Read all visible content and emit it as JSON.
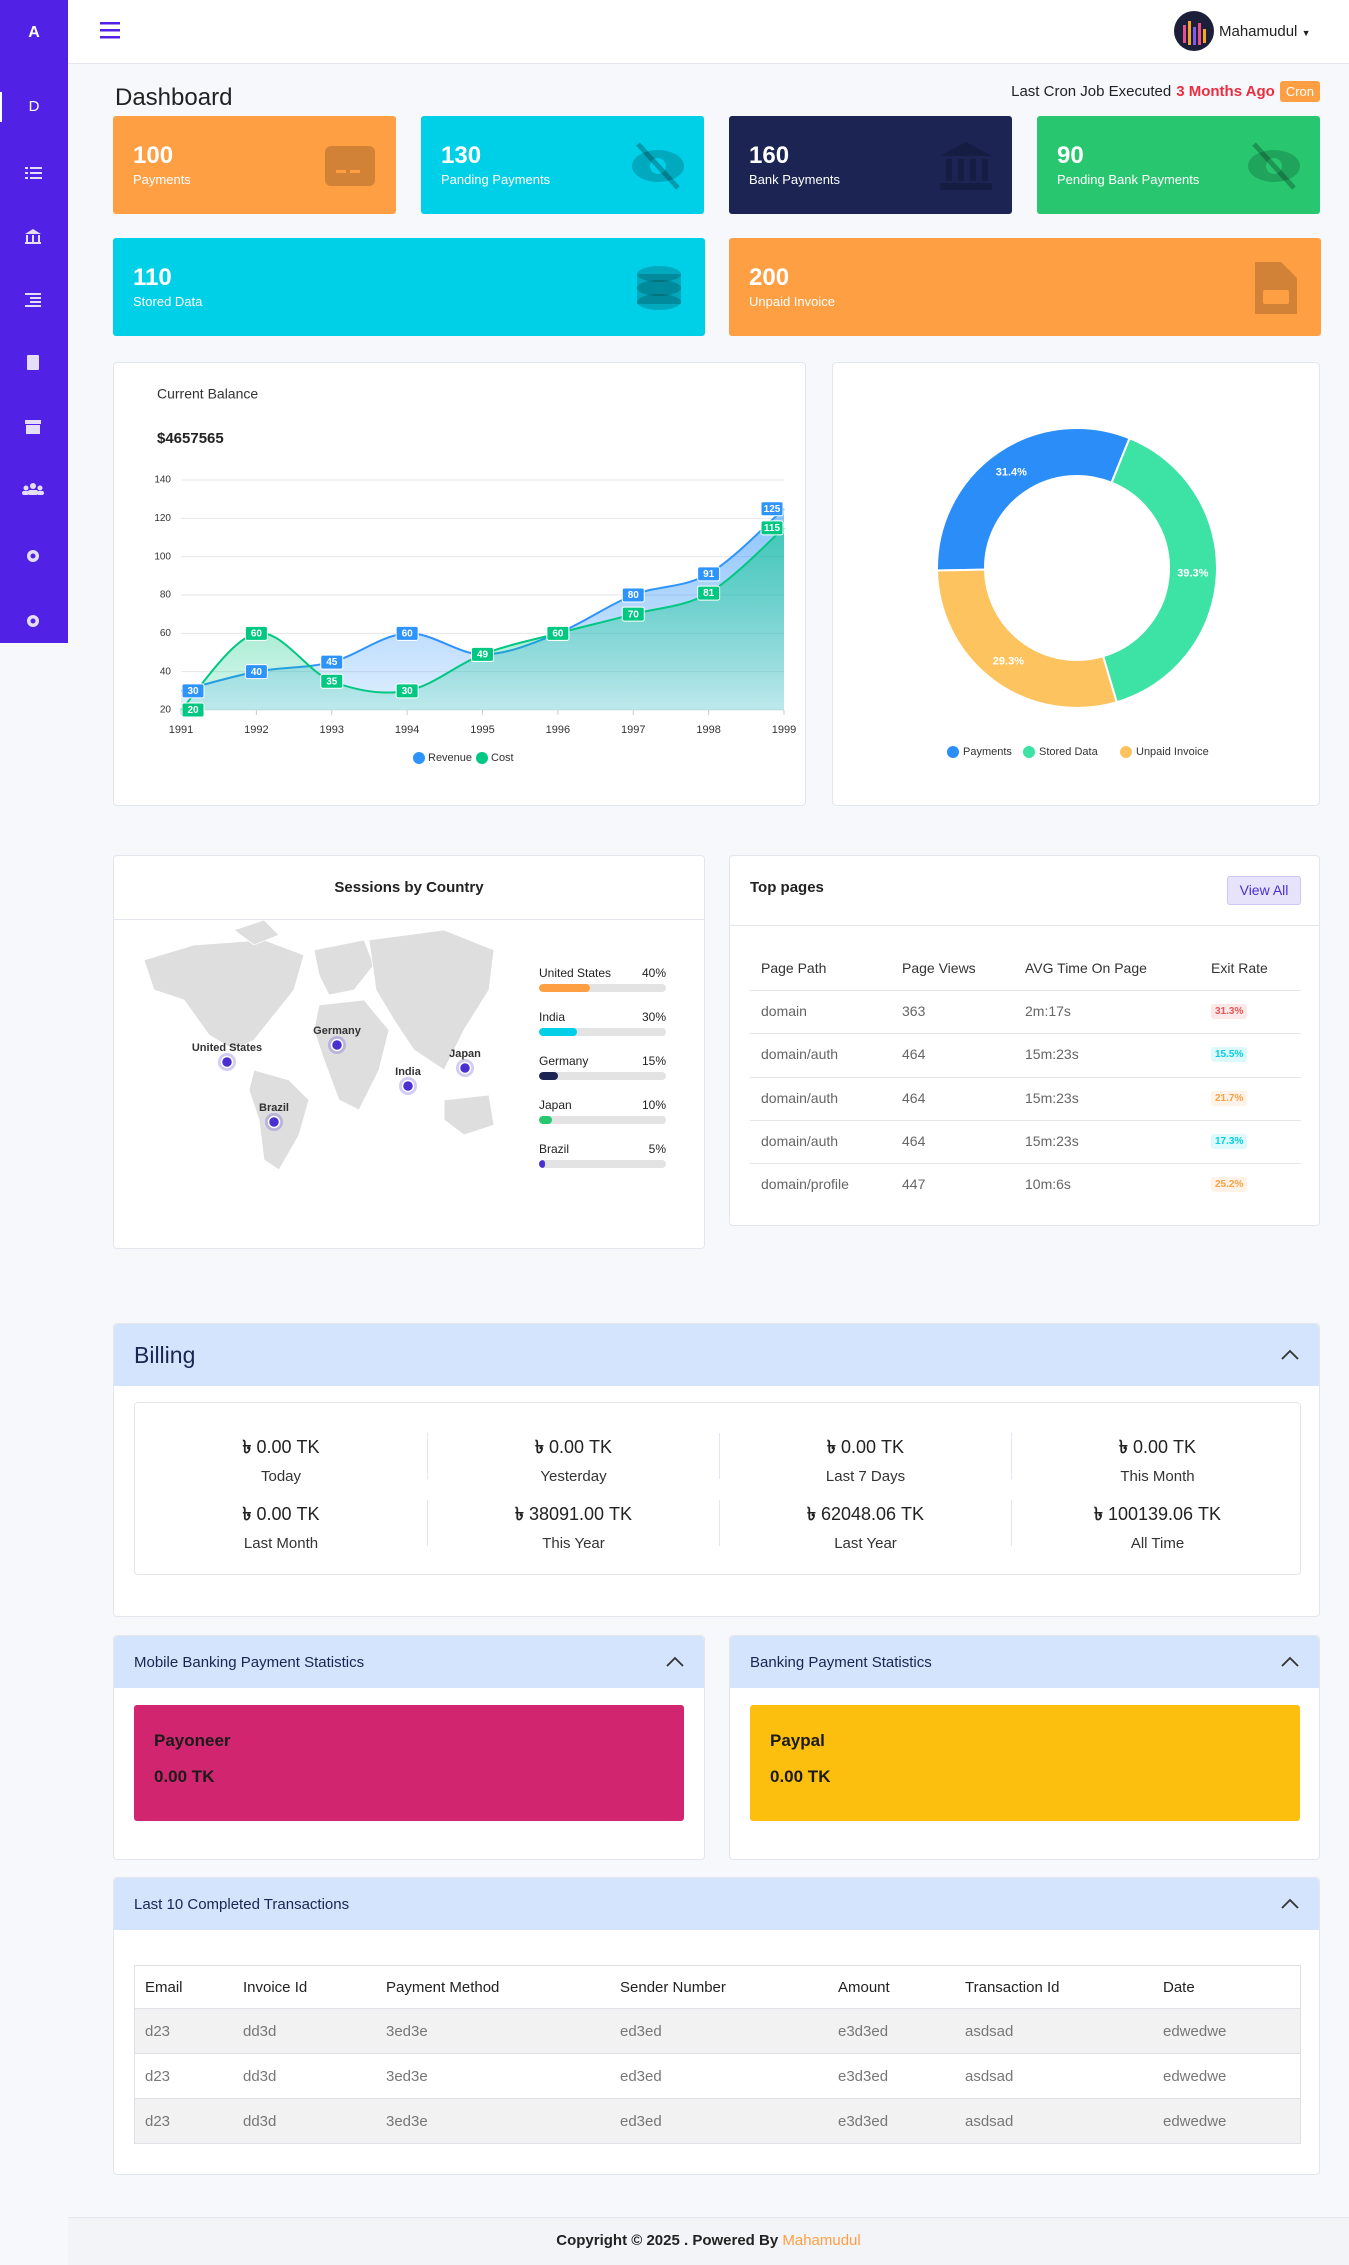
{
  "sidebar": {
    "brand": "A",
    "items": [
      "D"
    ]
  },
  "navbar": {
    "user": "Mahamudul"
  },
  "page": {
    "title": "Dashboard",
    "cron_text": "Last Cron Job Executed",
    "cron_time": "3 Months Ago",
    "cron_badge": "Cron"
  },
  "stats": [
    {
      "value": 100,
      "label": "Payments",
      "color": "#ff9f43"
    },
    {
      "value": 130,
      "label": "Panding Payments",
      "color": "#00cfe8"
    },
    {
      "value": 160,
      "label": "Bank Payments",
      "color": "#1b2452"
    },
    {
      "value": 90,
      "label": "Pending Bank Payments",
      "color": "#28c76f"
    },
    {
      "value": 110,
      "label": "Stored Data",
      "color": "#00cfe8"
    },
    {
      "value": 200,
      "label": "Unpaid Invoice",
      "color": "#ff9f43"
    }
  ],
  "chart_data": [
    {
      "type": "area",
      "title": "Current Balance",
      "subtitle": "$4657565",
      "x": [
        1991,
        1992,
        1993,
        1994,
        1995,
        1996,
        1997,
        1998,
        1999
      ],
      "xlim": [
        1991,
        1999
      ],
      "xticks": [
        1991,
        1992,
        1993,
        1994,
        1995,
        1996,
        1997,
        1998,
        1999
      ],
      "ylim": [
        20,
        140
      ],
      "yticks": [
        20,
        40,
        60,
        80,
        100,
        120,
        140
      ],
      "grid": true,
      "series": [
        {
          "name": "Revenue",
          "color": "#2e93fa",
          "values": [
            30,
            40,
            45,
            60,
            49,
            60,
            80,
            91,
            125
          ]
        },
        {
          "name": "Cost",
          "color": "#00c781",
          "values": [
            20,
            60,
            35,
            30,
            49,
            60,
            70,
            81,
            115
          ]
        }
      ]
    },
    {
      "type": "donut",
      "categories": [
        "Payments",
        "Stored Data",
        "Unpaid Invoice"
      ],
      "values": [
        31.4,
        39.3,
        29.3
      ],
      "value_labels": [
        "31.4%",
        "39.3%",
        "29.3%"
      ],
      "colors": [
        "#2b8ef8",
        "#3de3a4",
        "#fdc35e"
      ]
    }
  ],
  "sessions": {
    "title": "Sessions by Country",
    "countries": [
      "United States",
      "India",
      "Germany",
      "Japan",
      "Brazil"
    ],
    "values": [
      40,
      30,
      15,
      10,
      5
    ],
    "value_labels": [
      "40%",
      "30%",
      "15%",
      "10%",
      "5%"
    ],
    "colors": [
      "#ff9f43",
      "#00cfe8",
      "#1b2452",
      "#28c76f",
      "#4b2fd1"
    ],
    "map_labels": [
      "United States",
      "Germany",
      "India",
      "Japan",
      "Brazil"
    ]
  },
  "top_pages": {
    "title": "Top pages",
    "button": "View All",
    "columns": [
      "Page Path",
      "Page Views",
      "AVG Time On Page",
      "Exit Rate"
    ],
    "rows": [
      [
        "domain",
        363,
        "2m:17s",
        "31.3%"
      ],
      [
        "domain/auth",
        464,
        "15m:23s",
        "15.5%"
      ],
      [
        "domain/auth",
        464,
        "15m:23s",
        "21.7%"
      ],
      [
        "domain/auth",
        464,
        "15m:23s",
        "17.3%"
      ],
      [
        "domain/profile",
        447,
        "10m:6s",
        "25.2%"
      ]
    ],
    "badge_colors": [
      "#ea5455",
      "#00cfe8",
      "#ff9f43",
      "#00cfe8",
      "#ff9f43"
    ]
  },
  "billing": {
    "title": "Billing",
    "currency": "৳",
    "items": [
      {
        "amount": "0.00 TK",
        "label": "Today"
      },
      {
        "amount": "0.00 TK",
        "label": "Yesterday"
      },
      {
        "amount": "0.00 TK",
        "label": "Last 7 Days"
      },
      {
        "amount": "0.00 TK",
        "label": "This Month"
      },
      {
        "amount": "0.00 TK",
        "label": "Last Month"
      },
      {
        "amount": "38091.00 TK",
        "label": "This Year"
      },
      {
        "amount": "62048.06 TK",
        "label": "Last Year"
      },
      {
        "amount": "100139.06 TK",
        "label": "All Time"
      }
    ]
  },
  "mobile_banking": {
    "title": "Mobile Banking Payment Statistics",
    "name": "Payoneer",
    "amount": "0.00 TK",
    "color": "#d1266f"
  },
  "banking": {
    "title": "Banking Payment Statistics",
    "name": "Paypal",
    "amount": "0.00 TK",
    "color": "#fdbf0d"
  },
  "transactions": {
    "title": "Last 10 Completed Transactions",
    "columns": [
      "Email",
      "Invoice Id",
      "Payment Method",
      "Sender Number",
      "Amount",
      "Transaction Id",
      "Date"
    ],
    "rows": [
      [
        "d23",
        "dd3d",
        "3ed3e",
        "ed3ed",
        "e3d3ed",
        "asdsad",
        "edwedwe"
      ],
      [
        "d23",
        "dd3d",
        "3ed3e",
        "ed3ed",
        "e3d3ed",
        "asdsad",
        "edwedwe"
      ],
      [
        "d23",
        "dd3d",
        "3ed3e",
        "ed3ed",
        "e3d3ed",
        "asdsad",
        "edwedwe"
      ]
    ]
  },
  "footer": {
    "text": "Copyright © 2025 . Powered By",
    "link": "Mahamudul"
  }
}
